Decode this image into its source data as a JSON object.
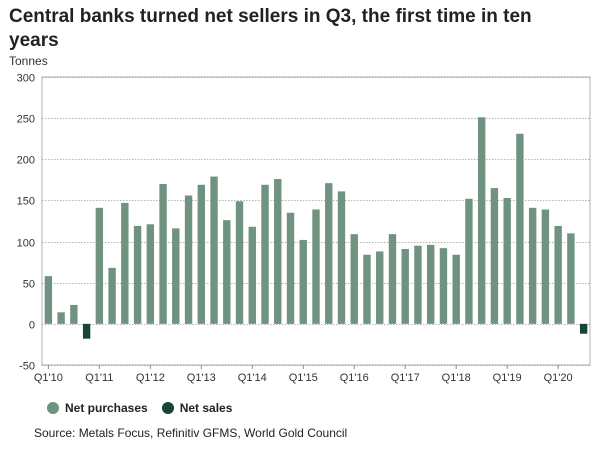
{
  "title": "Central banks turned net sellers in Q3, the first time in ten years",
  "source": "Source: Metals Focus, Refinitiv GFMS, World Gold Council",
  "colors": {
    "purchase": "#6f9281",
    "sale": "#17453a",
    "grid": "#9a9a9a"
  },
  "chart_data": {
    "type": "bar",
    "ylabel": "Tonnes",
    "ylim": [
      -50,
      300
    ],
    "yticks": [
      300,
      250,
      200,
      150,
      100,
      50,
      0,
      -50
    ],
    "grid": true,
    "legend_placement": "bottom-left",
    "categories": [
      "Q1'10",
      "Q2'10",
      "Q3'10",
      "Q4'10",
      "Q1'11",
      "Q2'11",
      "Q3'11",
      "Q4'11",
      "Q1'12",
      "Q2'12",
      "Q3'12",
      "Q4'12",
      "Q1'13",
      "Q2'13",
      "Q3'13",
      "Q4'13",
      "Q1'14",
      "Q2'14",
      "Q3'14",
      "Q4'14",
      "Q1'15",
      "Q2'15",
      "Q3'15",
      "Q4'15",
      "Q1'16",
      "Q2'16",
      "Q3'16",
      "Q4'16",
      "Q1'17",
      "Q2'17",
      "Q3'17",
      "Q4'17",
      "Q1'18",
      "Q2'18",
      "Q3'18",
      "Q4'18",
      "Q1'19",
      "Q2'19",
      "Q3'19",
      "Q4'19",
      "Q1'20",
      "Q2'20",
      "Q3'20"
    ],
    "xtick_labels": [
      "Q1'10",
      "Q1'11",
      "Q1'12",
      "Q1'13",
      "Q1'14",
      "Q1'15",
      "Q1'16",
      "Q1'17",
      "Q1'18",
      "Q1'19",
      "Q1'20"
    ],
    "series": [
      {
        "name": "Net purchases",
        "values": [
          58,
          14,
          23,
          null,
          141,
          68,
          147,
          119,
          121,
          170,
          116,
          156,
          169,
          179,
          126,
          149,
          118,
          169,
          176,
          135,
          102,
          139,
          171,
          161,
          109,
          84,
          88,
          109,
          91,
          95,
          96,
          92,
          84,
          152,
          251,
          165,
          153,
          231,
          141,
          139,
          119,
          110,
          null
        ]
      },
      {
        "name": "Net sales",
        "values": [
          null,
          null,
          null,
          -18,
          null,
          null,
          null,
          null,
          null,
          null,
          null,
          null,
          null,
          null,
          null,
          null,
          null,
          null,
          null,
          null,
          null,
          null,
          null,
          null,
          null,
          null,
          null,
          null,
          null,
          null,
          null,
          null,
          null,
          null,
          null,
          null,
          null,
          null,
          null,
          null,
          null,
          null,
          -12
        ]
      }
    ]
  }
}
